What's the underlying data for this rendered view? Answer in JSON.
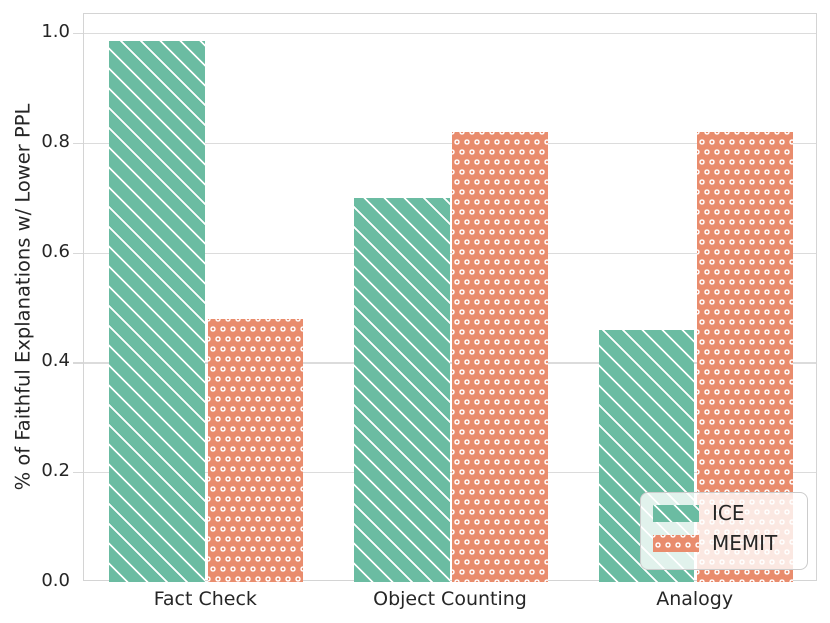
{
  "chart_data": {
    "type": "bar",
    "title": "",
    "xlabel": "",
    "ylabel": "% of Faithful Explanations w/ Lower PPL",
    "categories": [
      "Fact Check",
      "Object Counting",
      "Analogy"
    ],
    "series": [
      {
        "name": "ICE",
        "color": "#6bbca2",
        "hatch": "diagonal",
        "values": [
          0.985,
          0.7,
          0.46
        ]
      },
      {
        "name": "MEMIT",
        "color": "#e98c6d",
        "hatch": "circles",
        "values": [
          0.48,
          0.82,
          0.82
        ]
      }
    ],
    "ylim": [
      0.0,
      1.035
    ],
    "yticks": [
      0.0,
      0.2,
      0.4,
      0.6,
      0.8,
      1.0
    ],
    "ytick_labels": [
      "0.0",
      "0.2",
      "0.4",
      "0.6",
      "0.8",
      "1.0"
    ],
    "grid": true,
    "legend_position": "lower right"
  },
  "colors": {
    "grid": "#dcdcdc",
    "spine": "#d4d4d4",
    "text": "#262626",
    "background": "#ffffff"
  }
}
